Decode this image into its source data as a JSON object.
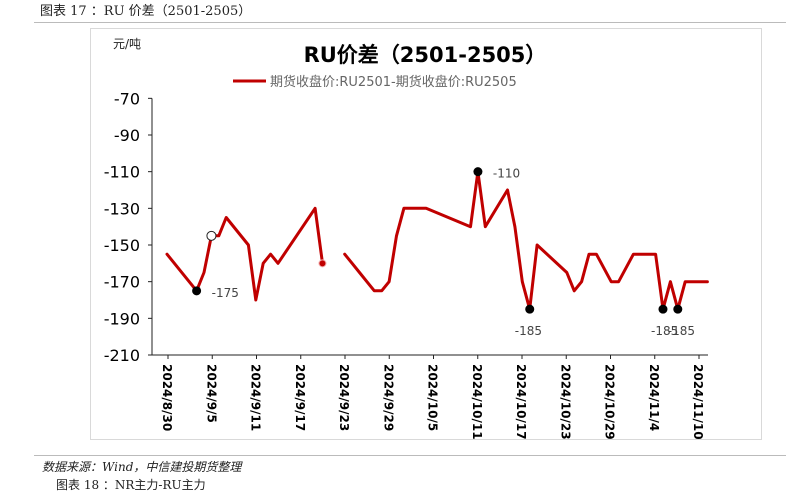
{
  "figure_caption": "图表 17 ：RU 价差（2501-2505）",
  "source_note": "数据来源：Wind，中信建投期货整理",
  "next_caption": "图表 18 ：NR主力-RU主力",
  "colors": {
    "series": "#c00000",
    "axis": "#222222",
    "frame": "#d9d9d9"
  },
  "chart_data": {
    "type": "line",
    "title": "RU价差（2501-2505）",
    "ylabel": "元/吨",
    "xlabel": "",
    "ylim": [
      -210,
      -60
    ],
    "yticks": [
      -70,
      -90,
      -110,
      -130,
      -150,
      -170,
      -190,
      -210
    ],
    "xtick_labels": [
      "2024/8/30",
      "2024/9/5",
      "2024/9/11",
      "2024/9/17",
      "2024/9/23",
      "2024/9/29",
      "2024/10/5",
      "2024/10/11",
      "2024/10/17",
      "2024/10/23",
      "2024/10/29",
      "2024/11/4",
      "2024/11/10"
    ],
    "legend": "top",
    "grid": false,
    "series": [
      {
        "name": "期货收盘价:RU2501-期货收盘价:RU2505",
        "segments": [
          [
            [
              "2024-08-30",
              -155
            ],
            [
              "2024-09-02",
              -170
            ],
            [
              "2024-09-03",
              -175
            ],
            [
              "2024-09-04",
              -165
            ],
            [
              "2024-09-05",
              -145
            ],
            [
              "2024-09-06",
              -145
            ],
            [
              "2024-09-07",
              -135
            ],
            [
              "2024-09-10",
              -150
            ],
            [
              "2024-09-11",
              -180
            ],
            [
              "2024-09-12",
              -160
            ],
            [
              "2024-09-13",
              -155
            ],
            [
              "2024-09-14",
              -160
            ],
            [
              "2024-09-19",
              -130
            ],
            [
              "2024-09-20",
              -160
            ]
          ],
          [
            [
              "2024-09-23",
              -155
            ],
            [
              "2024-09-24",
              -160
            ],
            [
              "2024-09-25",
              -165
            ],
            [
              "2024-09-26",
              -170
            ],
            [
              "2024-09-27",
              -175
            ],
            [
              "2024-09-28",
              -175
            ],
            [
              "2024-09-29",
              -170
            ],
            [
              "2024-09-30",
              -145
            ],
            [
              "2024-10-01",
              -130
            ],
            [
              "2024-10-03",
              -130
            ],
            [
              "2024-10-04",
              -130
            ],
            [
              "2024-10-10",
              -140
            ],
            [
              "2024-10-11",
              -110
            ],
            [
              "2024-10-12",
              -140
            ],
            [
              "2024-10-15",
              -120
            ],
            [
              "2024-10-16",
              -140
            ],
            [
              "2024-10-17",
              -170
            ],
            [
              "2024-10-18",
              -185
            ],
            [
              "2024-10-19",
              -150
            ],
            [
              "2024-10-23",
              -165
            ],
            [
              "2024-10-24",
              -175
            ],
            [
              "2024-10-25",
              -170
            ],
            [
              "2024-10-26",
              -155
            ],
            [
              "2024-10-27",
              -155
            ],
            [
              "2024-10-29",
              -170
            ],
            [
              "2024-10-30",
              -170
            ],
            [
              "2024-11-01",
              -155
            ],
            [
              "2024-11-04",
              -155
            ],
            [
              "2024-11-05",
              -185
            ],
            [
              "2024-11-06",
              -170
            ],
            [
              "2024-11-07",
              -185
            ],
            [
              "2024-11-08",
              -170
            ],
            [
              "2024-11-11",
              -170
            ]
          ]
        ]
      }
    ],
    "annotations": [
      {
        "x": "2024-09-03",
        "y": -175,
        "label": "-175",
        "marker": "filled"
      },
      {
        "x": "2024-10-11",
        "y": -110,
        "label": "-110",
        "marker": "filled"
      },
      {
        "x": "2024-10-18",
        "y": -185,
        "label": "-185",
        "marker": "filled"
      },
      {
        "x": "2024-11-05",
        "y": -185,
        "label": "-185",
        "marker": "filled"
      },
      {
        "x": "2024-11-07",
        "y": -185,
        "label": "-185",
        "marker": "filled"
      },
      {
        "x": "2024-09-05",
        "y": -145,
        "label": "",
        "marker": "hollow"
      },
      {
        "x": "2024-09-20",
        "y": -160,
        "label": "",
        "marker": "red"
      }
    ]
  }
}
